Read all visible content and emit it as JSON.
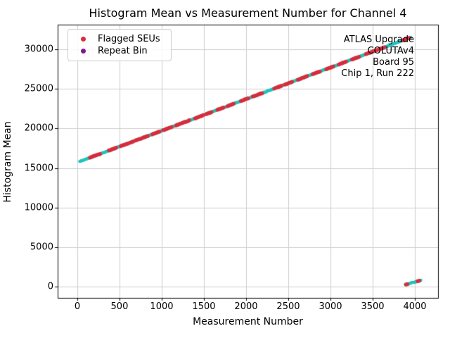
{
  "chart_data": {
    "type": "scatter",
    "title": "Histogram Mean vs Measurement Number for Channel 4",
    "xlabel": "Measurement Number",
    "ylabel": "Histogram Mean",
    "xlim": [
      -233,
      4275
    ],
    "ylim": [
      -1424,
      33116
    ],
    "xticks": [
      0,
      500,
      1000,
      1500,
      2000,
      2500,
      3000,
      3500,
      4000
    ],
    "yticks": [
      0,
      5000,
      10000,
      15000,
      20000,
      25000,
      30000
    ],
    "grid": true,
    "colors": {
      "trend": "#22c3bb",
      "flagged": "#d62d3c",
      "repeat_bin": "#7e1a8e",
      "grid_line": "#cdcdcd",
      "axis": "#000000"
    },
    "legend": {
      "position": "upper left",
      "entries": [
        {
          "label": "Flagged SEUs",
          "color": "#d62d3c"
        },
        {
          "label": "Repeat Bin",
          "color": "#7e1a8e"
        }
      ]
    },
    "annotation": {
      "position": "upper right",
      "lines": [
        "ATLAS Upgrade",
        "COLUTAv4",
        "Board 95",
        "Chip 1, Run 222"
      ]
    },
    "series": [
      {
        "name": "repeat-bin",
        "color": "#7e1a8e",
        "radius": 2.6,
        "points": [
          [
            760,
            18740
          ],
          [
            2210,
            24540
          ]
        ]
      },
      {
        "name": "main-trend",
        "color": "#22c3bb",
        "radius": 2.3,
        "model": {
          "x_start": 30,
          "x_end": 3950,
          "x_step": 8,
          "slope": 4.0,
          "intercept": 15700,
          "noise": 28
        }
      },
      {
        "name": "rollover-cluster",
        "color": "#22c3bb",
        "radius": 2.3,
        "model": {
          "x_start": 3890,
          "x_end": 4070,
          "x_step": 12,
          "slope": 3.0,
          "intercept": -11420,
          "noise": 40
        }
      },
      {
        "name": "flagged-seus",
        "color": "#d62d3c",
        "radius": 2.7,
        "line": {
          "slope": 4.0,
          "intercept": 15700,
          "noise": 28,
          "step": 12
        },
        "segments": [
          [
            150,
            270
          ],
          [
            375,
            460
          ],
          [
            515,
            600
          ],
          [
            625,
            672
          ],
          [
            690,
            755
          ],
          [
            775,
            840
          ],
          [
            890,
            975
          ],
          [
            1020,
            1120
          ],
          [
            1170,
            1330
          ],
          [
            1395,
            1500
          ],
          [
            1530,
            1600
          ],
          [
            1660,
            1735
          ],
          [
            1780,
            1860
          ],
          [
            1940,
            2025
          ],
          [
            2080,
            2190
          ],
          [
            2335,
            2420
          ],
          [
            2460,
            2545
          ],
          [
            2615,
            2725
          ],
          [
            2790,
            2875
          ],
          [
            2950,
            3040
          ],
          [
            3100,
            3190
          ],
          [
            3255,
            3350
          ],
          [
            3420,
            3520
          ],
          [
            3545,
            3645
          ],
          [
            3860,
            3940
          ]
        ],
        "extra_points": [
          [
            3895,
            262
          ],
          [
            3910,
            300
          ],
          [
            4035,
            688
          ],
          [
            4052,
            735
          ]
        ]
      }
    ]
  }
}
